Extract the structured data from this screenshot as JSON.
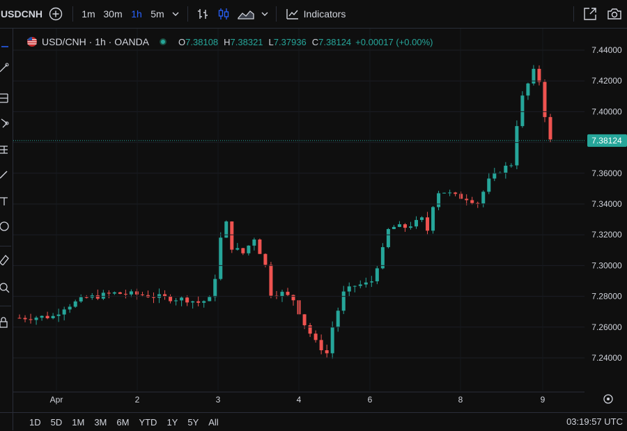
{
  "toolbar": {
    "symbol": "USDCNH",
    "timeframes": [
      "1m",
      "30m",
      "1h",
      "5m"
    ],
    "active_timeframe": "1h",
    "indicators_label": "Indicators",
    "icons": [
      "add-symbol-icon",
      "chevron-down-icon",
      "bar-style-icon",
      "candle-style-icon",
      "area-style-icon",
      "chevron-down-icon",
      "indicators-icon",
      "fullscreen-icon",
      "camera-icon"
    ]
  },
  "legend": {
    "title": "USD/CNH · 1h · OANDA",
    "o_label": "O",
    "o": "7.38108",
    "h_label": "H",
    "h": "7.38321",
    "l_label": "L",
    "l": "7.37936",
    "c_label": "C",
    "c": "7.38124",
    "change": "+0.00017 (+0.00%)"
  },
  "chart_data": {
    "type": "candlestick",
    "yticks": [
      "7.44000",
      "7.42000",
      "7.40000",
      "7.38000",
      "7.36000",
      "7.34000",
      "7.32000",
      "7.30000",
      "7.28000",
      "7.26000",
      "7.24000"
    ],
    "ylim": [
      7.23,
      7.447
    ],
    "xticks": [
      "Apr",
      "2",
      "3",
      "4",
      "6",
      "8",
      "9"
    ],
    "last_price": "7.38124",
    "close_path": [
      [
        0,
        7.266
      ],
      [
        6,
        7.267
      ],
      [
        8,
        7.273
      ],
      [
        12,
        7.279
      ],
      [
        17,
        7.282
      ],
      [
        22,
        7.281
      ],
      [
        24,
        7.28
      ],
      [
        26,
        7.279
      ],
      [
        30,
        7.278
      ],
      [
        32,
        7.276
      ],
      [
        34,
        7.278
      ],
      [
        35.5,
        7.3
      ],
      [
        36.5,
        7.335
      ],
      [
        38,
        7.312
      ],
      [
        40,
        7.308
      ],
      [
        42,
        7.318
      ],
      [
        44,
        7.3
      ],
      [
        45,
        7.282
      ],
      [
        47,
        7.282
      ],
      [
        49,
        7.278
      ],
      [
        51,
        7.262
      ],
      [
        53,
        7.25
      ],
      [
        55,
        7.243
      ],
      [
        56,
        7.26
      ],
      [
        58,
        7.282
      ],
      [
        60,
        7.287
      ],
      [
        62,
        7.288
      ],
      [
        63,
        7.29
      ],
      [
        64,
        7.3
      ],
      [
        65,
        7.31
      ],
      [
        66,
        7.323
      ],
      [
        67,
        7.325
      ],
      [
        69,
        7.325
      ],
      [
        71,
        7.328
      ],
      [
        72,
        7.33
      ],
      [
        73,
        7.323
      ],
      [
        74.5,
        7.348
      ],
      [
        76,
        7.348
      ],
      [
        78,
        7.345
      ],
      [
        80,
        7.344
      ],
      [
        82,
        7.341
      ],
      [
        84,
        7.355
      ],
      [
        86,
        7.362
      ],
      [
        88,
        7.366
      ],
      [
        89.5,
        7.405
      ],
      [
        91,
        7.418
      ],
      [
        92,
        7.426
      ],
      [
        93,
        7.42
      ],
      [
        94,
        7.398
      ],
      [
        95,
        7.381
      ]
    ]
  },
  "bottombar": {
    "ranges": [
      "1D",
      "5D",
      "1M",
      "3M",
      "6M",
      "YTD",
      "1Y",
      "5Y",
      "All"
    ],
    "clock": "03:19:57 UTC"
  }
}
